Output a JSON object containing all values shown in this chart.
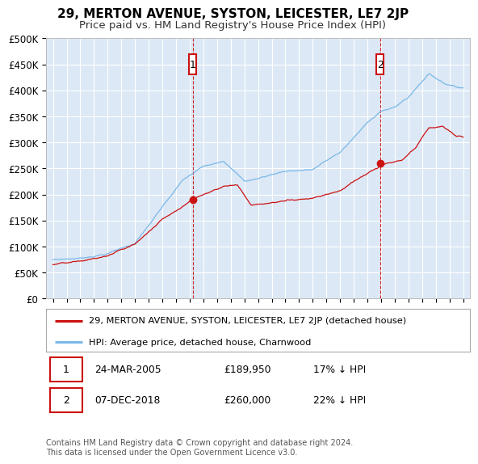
{
  "title": "29, MERTON AVENUE, SYSTON, LEICESTER, LE7 2JP",
  "subtitle": "Price paid vs. HM Land Registry's House Price Index (HPI)",
  "title_fontsize": 11,
  "subtitle_fontsize": 9.5,
  "ylim": [
    0,
    500000
  ],
  "yticks": [
    0,
    50000,
    100000,
    150000,
    200000,
    250000,
    300000,
    350000,
    400000,
    450000,
    500000
  ],
  "ytick_labels": [
    "£0",
    "£50K",
    "£100K",
    "£150K",
    "£200K",
    "£250K",
    "£300K",
    "£350K",
    "£400K",
    "£450K",
    "£500K"
  ],
  "xlim_start": 1994.5,
  "xlim_end": 2025.5,
  "hpi_color": "#7ab8e8",
  "price_color": "#cc1111",
  "background_color": "#dce8f5",
  "grid_color": "#ffffff",
  "fig_bg": "#ffffff",
  "purchase1_x": 2005.22,
  "purchase1_y": 189950,
  "purchase2_x": 2018.93,
  "purchase2_y": 260000,
  "legend_line1": "29, MERTON AVENUE, SYSTON, LEICESTER, LE7 2JP (detached house)",
  "legend_line2": "HPI: Average price, detached house, Charnwood",
  "ann1_num": "1",
  "ann1_date": "24-MAR-2005",
  "ann1_price": "£189,950",
  "ann1_hpi": "17% ↓ HPI",
  "ann2_num": "2",
  "ann2_date": "07-DEC-2018",
  "ann2_price": "£260,000",
  "ann2_hpi": "22% ↓ HPI",
  "footnote": "Contains HM Land Registry data © Crown copyright and database right 2024.\nThis data is licensed under the Open Government Licence v3.0."
}
